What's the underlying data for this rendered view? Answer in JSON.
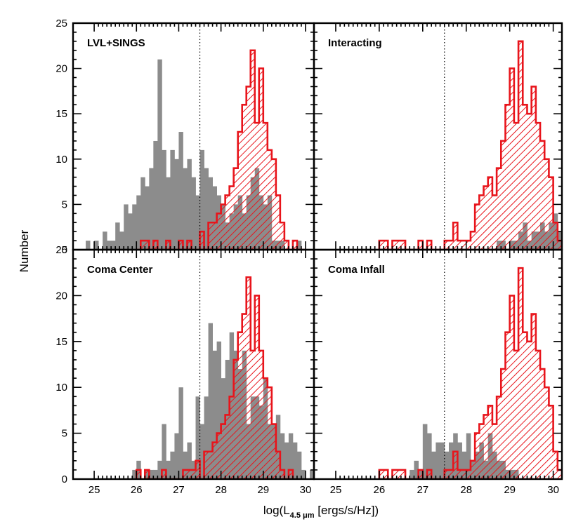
{
  "figure": {
    "ylabel": "Number",
    "xlabel": "log(L",
    "xlabel_sub": "4.5 μm",
    "xlabel_units": " [ergs/s/Hz])"
  },
  "colors": {
    "gray_fill": "#8c8c8c",
    "red": "#e8141b",
    "reference_line": "#000000"
  },
  "chart_data": [
    {
      "type": "histogram",
      "label": "LVL+SINGS",
      "bin_width": 0.1,
      "xlim": [
        24.5,
        30.2
      ],
      "ylim": [
        0,
        25
      ],
      "xticks": [
        25,
        26,
        27,
        28,
        29,
        30
      ],
      "yticks": [
        0,
        5,
        10,
        15,
        20,
        25
      ],
      "reference_line_x": 27.5,
      "gray": {
        "start": 24.8,
        "counts": [
          1,
          0,
          1,
          0,
          2,
          1,
          1,
          3,
          2,
          5,
          4,
          5,
          6,
          8,
          7,
          9,
          12,
          21,
          11,
          8,
          11,
          10,
          13,
          9,
          10,
          8,
          6,
          11,
          9,
          8,
          7,
          6,
          5,
          3,
          4,
          5,
          6,
          4,
          6,
          8,
          9,
          6,
          5,
          6,
          1,
          1,
          1,
          0,
          0,
          0,
          1
        ]
      },
      "red": {
        "start": 26.0,
        "counts": [
          0,
          1,
          1,
          0,
          1,
          0,
          0,
          1,
          0,
          0,
          1,
          0,
          1,
          0,
          0,
          2,
          0,
          3,
          3,
          4,
          5,
          6,
          7,
          9,
          13,
          16,
          18,
          22,
          14,
          20,
          14,
          11,
          10,
          6,
          3,
          1,
          0,
          1,
          0,
          0
        ]
      }
    },
    {
      "type": "histogram",
      "label": "Interacting",
      "bin_width": 0.1,
      "xlim": [
        24.5,
        30.2
      ],
      "ylim": [
        0,
        25
      ],
      "xticks": [
        25,
        26,
        27,
        28,
        29,
        30
      ],
      "yticks": [
        0,
        5,
        10,
        15,
        20,
        25
      ],
      "reference_line_x": 27.5,
      "gray": {
        "start": 28.0,
        "counts": [
          0,
          0,
          0,
          0,
          0,
          0,
          0,
          1,
          1,
          0,
          1,
          1,
          2,
          3,
          1,
          2,
          2,
          3,
          2,
          3,
          4,
          2,
          0,
          0,
          0,
          0,
          0,
          0
        ]
      },
      "red": {
        "start": 26.0,
        "counts": [
          1,
          1,
          0,
          1,
          1,
          1,
          0,
          0,
          0,
          1,
          0,
          1,
          0,
          0,
          0,
          1,
          1,
          3,
          1,
          1,
          1,
          2,
          5,
          6,
          7,
          8,
          6,
          9,
          12,
          16,
          20,
          14,
          23,
          16,
          15,
          18,
          14,
          12,
          10,
          8,
          3,
          1,
          0,
          1,
          0
        ]
      }
    },
    {
      "type": "histogram",
      "label": "Coma Center",
      "bin_width": 0.1,
      "xlim": [
        24.5,
        30.2
      ],
      "ylim": [
        0,
        25
      ],
      "xticks": [
        25,
        26,
        27,
        28,
        29,
        30
      ],
      "yticks": [
        0,
        5,
        10,
        15,
        20,
        25
      ],
      "reference_line_x": 27.5,
      "gray": {
        "start": 25.9,
        "counts": [
          1,
          2,
          0,
          1,
          1,
          1,
          2,
          6,
          2,
          3,
          5,
          10,
          3,
          4,
          2,
          9,
          6,
          9,
          17,
          14,
          15,
          11,
          13,
          16,
          14,
          12,
          14,
          6,
          9,
          9,
          8,
          11,
          6,
          6,
          7,
          5,
          4,
          5,
          4,
          3,
          1,
          0,
          1
        ]
      },
      "red": {
        "start": 26.0,
        "counts": [
          1,
          0,
          1,
          0,
          0,
          0,
          1,
          0,
          0,
          0,
          0,
          1,
          1,
          1,
          2,
          0,
          3,
          3,
          4,
          5,
          6,
          7,
          9,
          13,
          16,
          18,
          22,
          14,
          20,
          14,
          11,
          10,
          6,
          3,
          1,
          0,
          1
        ]
      }
    },
    {
      "type": "histogram",
      "label": "Coma Infall",
      "bin_width": 0.1,
      "xlim": [
        24.5,
        30.2
      ],
      "ylim": [
        0,
        25
      ],
      "xticks": [
        25,
        26,
        27,
        28,
        29,
        30
      ],
      "yticks": [
        0,
        5,
        10,
        15,
        20,
        25
      ],
      "reference_line_x": 27.5,
      "gray": {
        "start": 26.7,
        "counts": [
          1,
          2,
          1,
          6,
          5,
          3,
          4,
          4,
          3,
          4,
          5,
          4,
          3,
          5,
          2,
          3,
          4,
          2,
          5,
          3,
          2,
          2,
          1,
          1,
          1,
          0,
          0
        ]
      },
      "red": {
        "start": 26.0,
        "counts": [
          1,
          1,
          0,
          1,
          1,
          1,
          0,
          0,
          0,
          1,
          0,
          1,
          0,
          0,
          0,
          1,
          1,
          3,
          1,
          1,
          1,
          2,
          5,
          6,
          7,
          8,
          6,
          9,
          12,
          16,
          20,
          14,
          23,
          16,
          15,
          18,
          14,
          12,
          10,
          8,
          3,
          1,
          0,
          1,
          0
        ]
      }
    }
  ]
}
